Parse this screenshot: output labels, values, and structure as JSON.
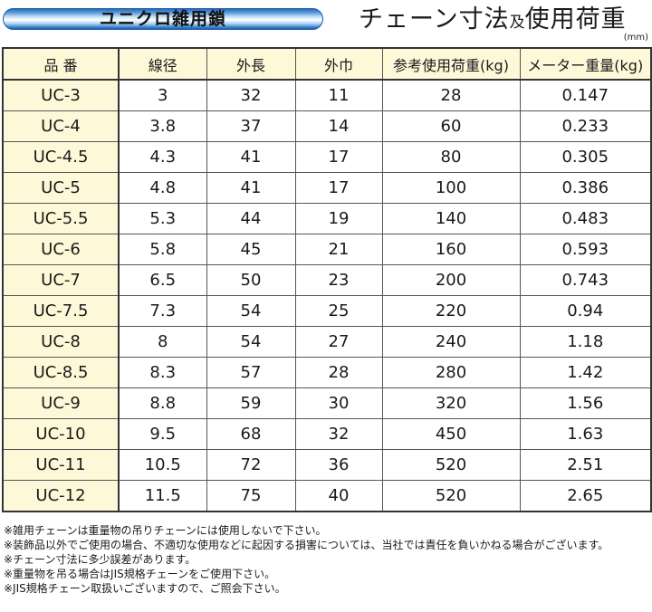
{
  "header": {
    "banner_label": "ユニクロ雑用鎖",
    "title_part1": "チェーン寸法",
    "title_connector": "及",
    "title_part2": "使用荷重",
    "unit": "(mm)"
  },
  "table": {
    "columns": [
      "品 番",
      "線径",
      "外長",
      "外巾",
      "参考使用荷重(kg)",
      "メーター重量(kg)"
    ],
    "rows": [
      [
        "UC-3",
        "3",
        "32",
        "11",
        "28",
        "0.147"
      ],
      [
        "UC-4",
        "3.8",
        "37",
        "14",
        "60",
        "0.233"
      ],
      [
        "UC-4.5",
        "4.3",
        "41",
        "17",
        "80",
        "0.305"
      ],
      [
        "UC-5",
        "4.8",
        "41",
        "17",
        "100",
        "0.386"
      ],
      [
        "UC-5.5",
        "5.3",
        "44",
        "19",
        "140",
        "0.483"
      ],
      [
        "UC-6",
        "5.8",
        "45",
        "21",
        "160",
        "0.593"
      ],
      [
        "UC-7",
        "6.5",
        "50",
        "23",
        "200",
        "0.743"
      ],
      [
        "UC-7.5",
        "7.3",
        "54",
        "25",
        "220",
        "0.94"
      ],
      [
        "UC-8",
        "8",
        "54",
        "27",
        "240",
        "1.18"
      ],
      [
        "UC-8.5",
        "8.3",
        "57",
        "28",
        "280",
        "1.42"
      ],
      [
        "UC-9",
        "8.8",
        "59",
        "30",
        "320",
        "1.56"
      ],
      [
        "UC-10",
        "9.5",
        "68",
        "32",
        "450",
        "1.63"
      ],
      [
        "UC-11",
        "10.5",
        "72",
        "36",
        "520",
        "2.51"
      ],
      [
        "UC-12",
        "11.5",
        "75",
        "40",
        "520",
        "2.65"
      ]
    ]
  },
  "notes": [
    "※雑用チェーンは重量物の吊りチェーンには使用しないで下さい。",
    "※装飾品以外でご使用の場合、不適切な使用などに起因する損害については、当社では責任を負いかねる場合がございます。",
    "※チェーン寸法に多少誤差があります。",
    "※重量物を吊る場合はJIS規格チェーンをご使用下さい。",
    "※JIS規格チェーン取扱いございますので、ご照会下さい。"
  ],
  "colors": {
    "header_bg": "#fdf9d8",
    "model_col_bg": "#fdf9d8",
    "banner_blue": "#1f5fb0",
    "border": "#333333"
  }
}
